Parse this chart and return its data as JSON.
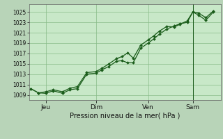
{
  "background_color": "#b8d4b8",
  "plot_bg_color": "#c8e8c8",
  "grid_color": "#88bb88",
  "line_color": "#1a5c1a",
  "marker_color": "#1a5c1a",
  "xlabel": "Pression niveau de la mer( hPa )",
  "yticks": [
    1009,
    1011,
    1013,
    1015,
    1017,
    1019,
    1021,
    1023,
    1025
  ],
  "ylim": [
    1008.0,
    1026.5
  ],
  "xtick_labels": [
    "Jeu",
    "Dim",
    "Ven",
    "Sam"
  ],
  "xtick_positions": [
    0.08,
    0.35,
    0.63,
    0.87
  ],
  "xlim": [
    -0.01,
    1.02
  ],
  "line1_x": [
    0.0,
    0.04,
    0.08,
    0.12,
    0.17,
    0.21,
    0.25,
    0.3,
    0.35,
    0.38,
    0.42,
    0.46,
    0.49,
    0.52,
    0.55,
    0.59,
    0.63,
    0.66,
    0.69,
    0.73,
    0.77,
    0.8,
    0.84,
    0.87,
    0.9,
    0.94,
    0.98
  ],
  "line1_y": [
    1010.2,
    1009.4,
    1009.3,
    1009.8,
    1009.3,
    1010.0,
    1010.2,
    1013.0,
    1013.2,
    1013.8,
    1014.5,
    1015.5,
    1015.6,
    1015.2,
    1015.2,
    1018.0,
    1019.0,
    1019.8,
    1020.7,
    1021.7,
    1022.3,
    1022.7,
    1023.0,
    1025.0,
    1024.4,
    1023.4,
    1025.0
  ],
  "line2_x": [
    0.0,
    0.04,
    0.08,
    0.12,
    0.17,
    0.21,
    0.25,
    0.3,
    0.35,
    0.38,
    0.42,
    0.46,
    0.49,
    0.52,
    0.55,
    0.59,
    0.63,
    0.66,
    0.69,
    0.73,
    0.77,
    0.8,
    0.84,
    0.87,
    0.9,
    0.94,
    0.98
  ],
  "line2_y": [
    1010.2,
    1009.4,
    1009.6,
    1010.0,
    1009.6,
    1010.3,
    1010.6,
    1013.3,
    1013.5,
    1014.1,
    1015.0,
    1016.0,
    1016.4,
    1017.1,
    1016.1,
    1018.6,
    1019.6,
    1020.4,
    1021.3,
    1022.2,
    1022.1,
    1022.6,
    1023.3,
    1025.0,
    1024.8,
    1023.9,
    1025.2
  ],
  "vline_x": 0.87,
  "vline_color": "#1a5c1a",
  "figsize": [
    3.2,
    2.0
  ],
  "dpi": 100
}
